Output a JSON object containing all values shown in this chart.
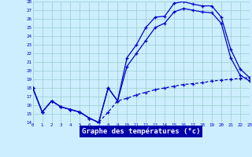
{
  "xlabel": "Graphe des températures (°c)",
  "bg_color": "#cceeff",
  "line_color": "#0000cc",
  "grid_color": "#99cccc",
  "hours": [
    0,
    1,
    2,
    3,
    4,
    5,
    6,
    7,
    8,
    9,
    10,
    11,
    12,
    13,
    14,
    15,
    16,
    17,
    18,
    19,
    20,
    21,
    22,
    23
  ],
  "temp_max": [
    18,
    15.2,
    16.5,
    15.8,
    15.5,
    15.2,
    14.5,
    14.0,
    18.0,
    16.5,
    21.5,
    23.0,
    25.0,
    26.2,
    26.3,
    27.8,
    28.0,
    27.7,
    27.5,
    27.5,
    26.2,
    22.5,
    20.2,
    19.2
  ],
  "temp_mid": [
    18,
    15.2,
    16.5,
    15.8,
    15.5,
    15.2,
    14.5,
    14.0,
    18.0,
    16.5,
    20.5,
    22.0,
    23.5,
    25.0,
    25.5,
    26.8,
    27.2,
    27.0,
    26.8,
    26.7,
    25.5,
    21.5,
    19.5,
    18.8
  ],
  "temp_min": [
    18,
    15.2,
    16.5,
    15.8,
    15.5,
    15.2,
    14.5,
    14.0,
    15.2,
    16.5,
    16.8,
    17.2,
    17.5,
    17.8,
    18.0,
    18.2,
    18.4,
    18.5,
    18.6,
    18.8,
    18.9,
    19.0,
    19.1,
    19.2
  ],
  "ylim": [
    14,
    28
  ],
  "yticks": [
    14,
    15,
    16,
    17,
    18,
    19,
    20,
    21,
    22,
    23,
    24,
    25,
    26,
    27,
    28
  ],
  "xlim": [
    0,
    23
  ],
  "xlabel_bar_color": "#0000aa",
  "xlabel_text_color": "#ffffff"
}
